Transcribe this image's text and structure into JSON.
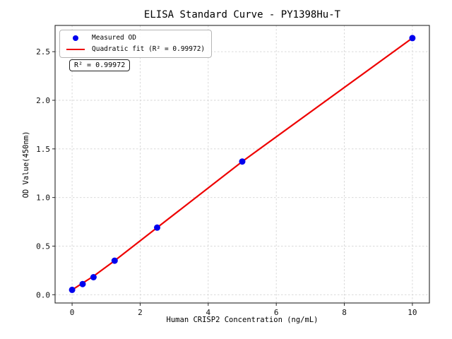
{
  "figure": {
    "title": "ELISA Standard Curve - PY1398Hu-T",
    "annotation_box": "R² = 0.99972"
  },
  "legend": {
    "measured_label": "Measured OD",
    "fit_label": "Quadratic fit (R² = 0.99972)"
  },
  "chart_data": {
    "type": "scatter",
    "title": "ELISA Standard Curve - PY1398Hu-T",
    "xlabel": "Human CRISP2 Concentration (ng/mL)",
    "ylabel": "OD Value(450nm)",
    "series": [
      {
        "name": "Measured OD",
        "type": "scatter",
        "color": "#0000ee",
        "x": [
          0,
          0.31,
          0.63,
          1.25,
          2.5,
          5,
          10
        ],
        "y": [
          0.05,
          0.11,
          0.18,
          0.35,
          0.69,
          1.37,
          2.64
        ]
      },
      {
        "name": "Quadratic fit",
        "type": "line",
        "color": "#ee0000",
        "r_squared": 0.99972,
        "x": [
          0,
          0.31,
          0.63,
          1.25,
          2.5,
          5,
          10
        ],
        "y": [
          0.05,
          0.12,
          0.19,
          0.35,
          0.69,
          1.37,
          2.64
        ]
      }
    ],
    "xlim": [
      -0.5,
      10.5
    ],
    "ylim": [
      -0.085,
      2.77
    ],
    "xticks": [
      0,
      2,
      4,
      6,
      8,
      10
    ],
    "xtick_labels": [
      "0",
      "2",
      "4",
      "6",
      "8",
      "10"
    ],
    "yticks": [
      0,
      0.5,
      1.0,
      1.5,
      2.0,
      2.5
    ],
    "ytick_labels": [
      "0.0",
      "0.5",
      "1.0",
      "1.5",
      "2.0",
      "2.5"
    ],
    "grid": true,
    "grid_style": "dashed",
    "legend_position": "upper left",
    "colors": {
      "points": "#0000ee",
      "fit_line": "#ee0000",
      "grid": "#d4d4d4",
      "frame": "#262626",
      "tick_text": "#111111"
    }
  }
}
